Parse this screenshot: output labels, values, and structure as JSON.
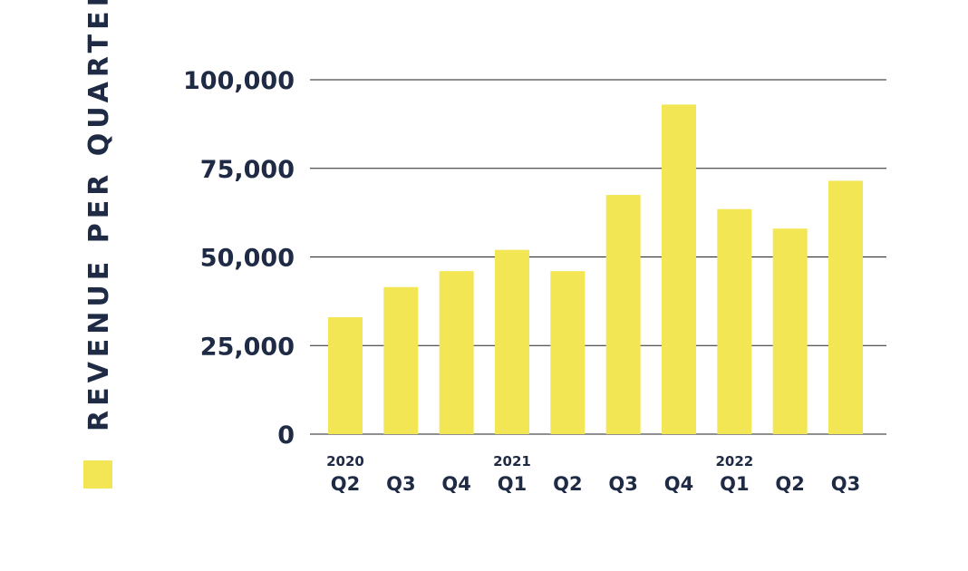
{
  "chart_data": {
    "type": "bar",
    "categories": [
      "Q2",
      "Q3",
      "Q4",
      "Q1",
      "Q2",
      "Q3",
      "Q4",
      "Q1",
      "Q2",
      "Q3"
    ],
    "year_labels": [
      "2020",
      "",
      "",
      "2021",
      "",
      "",
      "",
      "2022",
      "",
      ""
    ],
    "series": [
      {
        "name": "REVENUE PER QUARTER",
        "color": "#f2e655",
        "values": [
          33000,
          41500,
          46000,
          52000,
          46000,
          67500,
          93000,
          63500,
          58000,
          71500
        ]
      }
    ],
    "y_ticks": [
      "0",
      "25,000",
      "50,000",
      "75,000",
      "100,000"
    ],
    "ylim": [
      0,
      100000
    ],
    "grid": true,
    "legend_position": "left-vertical"
  }
}
